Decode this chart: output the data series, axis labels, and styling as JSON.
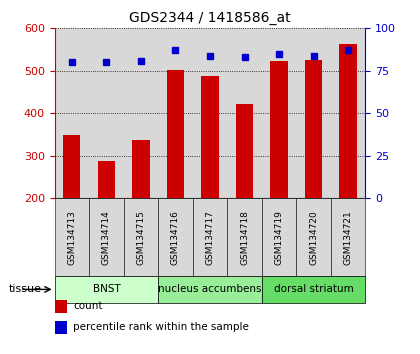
{
  "title": "GDS2344 / 1418586_at",
  "samples": [
    "GSM134713",
    "GSM134714",
    "GSM134715",
    "GSM134716",
    "GSM134717",
    "GSM134718",
    "GSM134719",
    "GSM134720",
    "GSM134721"
  ],
  "counts": [
    348,
    287,
    337,
    501,
    488,
    421,
    524,
    526,
    563
  ],
  "percentiles": [
    80,
    80,
    81,
    87,
    84,
    83,
    85,
    84,
    87
  ],
  "bar_color": "#cc0000",
  "dot_color": "#0000cc",
  "ylim_left": [
    200,
    600
  ],
  "ylim_right": [
    0,
    100
  ],
  "yticks_left": [
    200,
    300,
    400,
    500,
    600
  ],
  "yticks_right": [
    0,
    25,
    50,
    75,
    100
  ],
  "groups": [
    {
      "label": "BNST",
      "start": 0,
      "end": 3,
      "color": "#ccffcc"
    },
    {
      "label": "nucleus accumbens",
      "start": 3,
      "end": 6,
      "color": "#99ee99"
    },
    {
      "label": "dorsal striatum",
      "start": 6,
      "end": 9,
      "color": "#66dd66"
    }
  ],
  "tissue_label": "tissue",
  "legend_items": [
    {
      "label": "count",
      "color": "#cc0000"
    },
    {
      "label": "percentile rank within the sample",
      "color": "#0000cc"
    }
  ],
  "sample_bg": "#d8d8d8",
  "plot_bg": "#ffffff",
  "ymin": 200
}
